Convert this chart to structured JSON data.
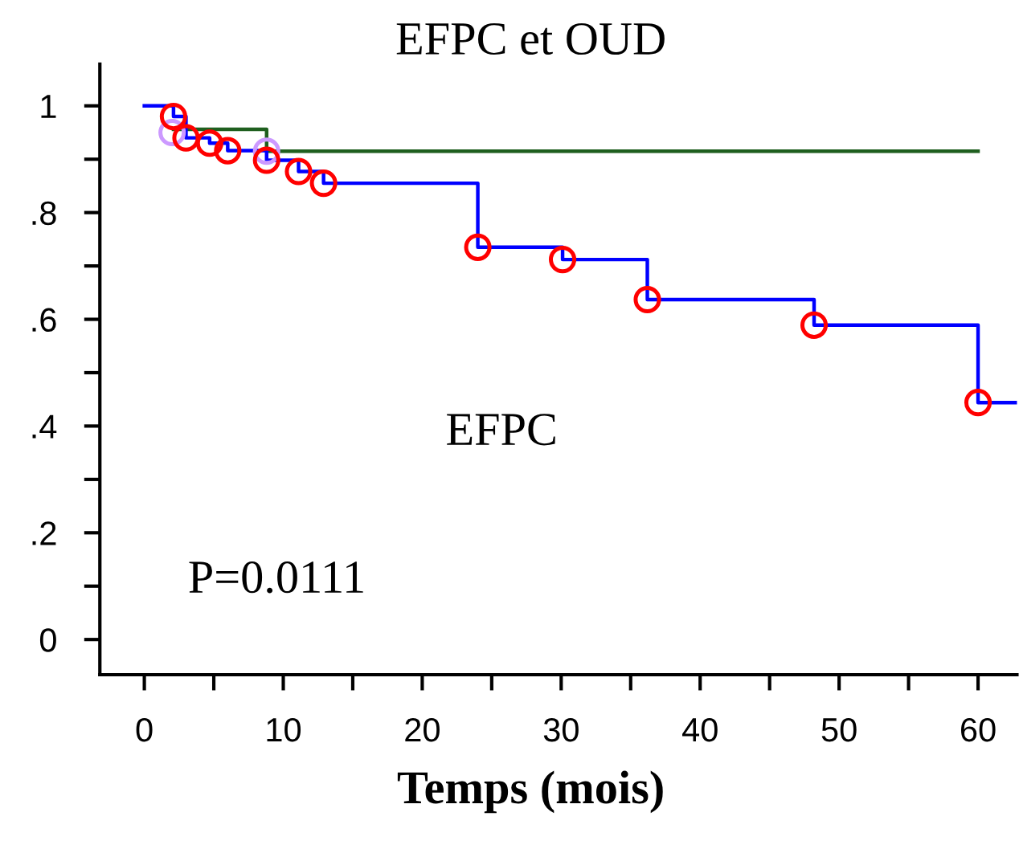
{
  "chart_data": {
    "type": "step",
    "title": "EFPC et OUD",
    "xlabel": "Temps (mois)",
    "annotations": [
      "EFPC",
      "P=0.0111"
    ],
    "series": [
      {
        "color": "#1f5f1f",
        "x": [
          2.1,
          8.8,
          60
        ],
        "values": [
          0.956,
          0.915,
          0.915
        ]
      },
      {
        "color": "#0000ff",
        "x": [
          0,
          2.1,
          3.0,
          4.7,
          6.0,
          8.8,
          11.1,
          12.9,
          24,
          30.1,
          36.2,
          48.2,
          60,
          62.8
        ],
        "values": [
          1.0,
          0.98,
          0.94,
          0.93,
          0.916,
          0.898,
          0.877,
          0.855,
          0.735,
          0.712,
          0.637,
          0.589,
          0.444,
          0.444
        ]
      },
      {
        "type": "scatter",
        "color": "#cc99ff",
        "marker": "circle",
        "x": [
          2.0,
          8.8
        ],
        "values": [
          0.95,
          0.915
        ]
      },
      {
        "type": "scatter",
        "color": "#ff0000",
        "marker": "circle",
        "x": [
          2.1,
          3.0,
          4.7,
          6.0,
          8.8,
          11.1,
          12.9,
          24,
          30.1,
          36.2,
          48.2,
          60
        ],
        "values": [
          0.98,
          0.94,
          0.93,
          0.916,
          0.898,
          0.877,
          0.855,
          0.735,
          0.712,
          0.637,
          0.589,
          0.444
        ]
      }
    ],
    "xlim": [
      -3.2,
      62.8
    ],
    "ylim": [
      -0.066,
      1.078
    ],
    "xticks": [
      0,
      {
        "value": 5,
        "label": null
      },
      10,
      {
        "value": 15,
        "label": null
      },
      20,
      {
        "value": 25,
        "label": null
      },
      30,
      {
        "value": 35,
        "label": null
      },
      40,
      {
        "value": 45,
        "label": null
      },
      50,
      {
        "value": 55,
        "label": null
      },
      60
    ],
    "yticks": [
      {
        "value": 0,
        "label": "0"
      },
      {
        "value": 0.1,
        "label": null
      },
      {
        "value": 0.2,
        "label": ".2"
      },
      {
        "value": 0.3,
        "label": null
      },
      {
        "value": 0.4,
        "label": ".4"
      },
      {
        "value": 0.5,
        "label": null
      },
      {
        "value": 0.6,
        "label": ".6"
      },
      {
        "value": 0.7,
        "label": null
      },
      {
        "value": 0.8,
        "label": ".8"
      },
      {
        "value": 0.9,
        "label": null
      },
      {
        "value": 1,
        "label": "1"
      }
    ],
    "grid": false,
    "legend": false
  }
}
